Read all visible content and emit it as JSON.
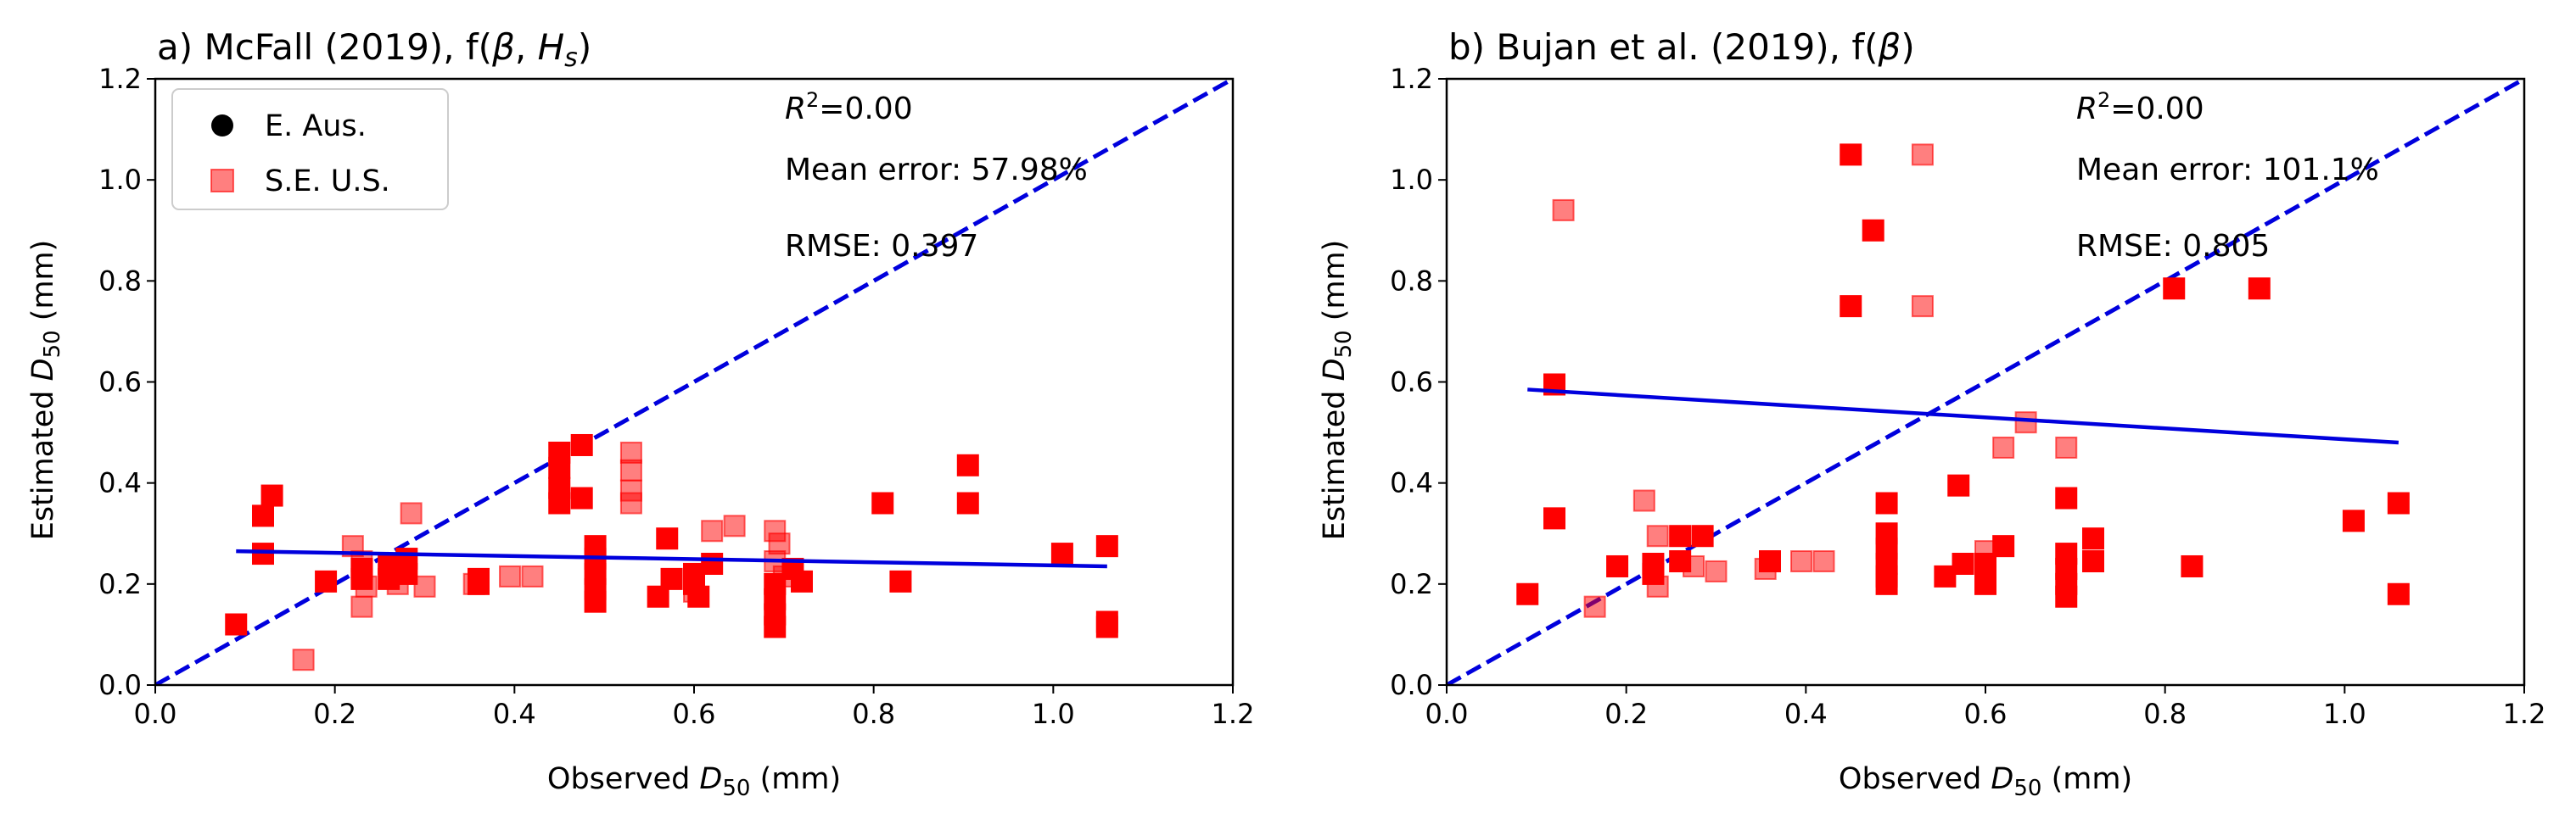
{
  "chart_data": [
    {
      "type": "scatter",
      "title": "a) McFall (2019), f(β, H_s)",
      "xlabel": "Observed D_50 (mm)",
      "ylabel": "Estimated D_50 (mm)",
      "xlim": [
        0,
        1.2
      ],
      "ylim": [
        0,
        1.2
      ],
      "xticks": [
        "0.0",
        "0.2",
        "0.4",
        "0.6",
        "0.8",
        "1.0",
        "1.2"
      ],
      "yticks": [
        "0.0",
        "0.2",
        "0.4",
        "0.6",
        "0.8",
        "1.0",
        "1.2"
      ],
      "grid": false,
      "legend": {
        "placement": "top-left",
        "entries": [
          {
            "label": "E. Aus.",
            "marker": "circle",
            "color": "#000000"
          },
          {
            "label": "S.E. U.S.",
            "marker": "square",
            "color": "#ff6b6b"
          }
        ]
      },
      "stats": {
        "r2": "R²=0.00",
        "mean_error": "Mean error: 57.98%",
        "rmse": "RMSE: 0.397"
      },
      "one_to_one_line": {
        "x": [
          0,
          1.2
        ],
        "y": [
          0,
          1.2
        ],
        "style": "dashed",
        "color": "#0000dd"
      },
      "fit_line": {
        "x": [
          0.09,
          1.06
        ],
        "y": [
          0.265,
          0.235
        ],
        "color": "#0000dd"
      },
      "series": [
        {
          "name": "E. Aus.",
          "marker": "square",
          "color": "#ff0000",
          "opacity": 1.0,
          "points": [
            [
              0.09,
              0.12
            ],
            [
              0.12,
              0.335
            ],
            [
              0.12,
              0.26
            ],
            [
              0.13,
              0.375
            ],
            [
              0.19,
              0.205
            ],
            [
              0.23,
              0.23
            ],
            [
              0.23,
              0.21
            ],
            [
              0.26,
              0.24
            ],
            [
              0.26,
              0.21
            ],
            [
              0.28,
              0.25
            ],
            [
              0.28,
              0.22
            ],
            [
              0.36,
              0.21
            ],
            [
              0.36,
              0.2
            ],
            [
              0.45,
              0.46
            ],
            [
              0.45,
              0.43
            ],
            [
              0.45,
              0.39
            ],
            [
              0.45,
              0.36
            ],
            [
              0.475,
              0.475
            ],
            [
              0.475,
              0.37
            ],
            [
              0.49,
              0.275
            ],
            [
              0.49,
              0.25
            ],
            [
              0.49,
              0.22
            ],
            [
              0.49,
              0.19
            ],
            [
              0.49,
              0.165
            ],
            [
              0.56,
              0.175
            ],
            [
              0.57,
              0.29
            ],
            [
              0.575,
              0.21
            ],
            [
              0.6,
              0.22
            ],
            [
              0.6,
              0.2
            ],
            [
              0.605,
              0.175
            ],
            [
              0.62,
              0.24
            ],
            [
              0.69,
              0.2
            ],
            [
              0.69,
              0.17
            ],
            [
              0.69,
              0.14
            ],
            [
              0.69,
              0.115
            ],
            [
              0.71,
              0.23
            ],
            [
              0.72,
              0.205
            ],
            [
              0.81,
              0.36
            ],
            [
              0.83,
              0.205
            ],
            [
              0.905,
              0.435
            ],
            [
              0.905,
              0.36
            ],
            [
              1.01,
              0.26
            ],
            [
              1.06,
              0.275
            ],
            [
              1.06,
              0.125
            ],
            [
              1.06,
              0.115
            ]
          ]
        },
        {
          "name": "S.E. U.S.",
          "marker": "square",
          "color": "#ff0000",
          "opacity": 0.5,
          "points": [
            [
              0.165,
              0.05
            ],
            [
              0.22,
              0.275
            ],
            [
              0.23,
              0.155
            ],
            [
              0.23,
              0.245
            ],
            [
              0.235,
              0.195
            ],
            [
              0.27,
              0.2
            ],
            [
              0.285,
              0.34
            ],
            [
              0.3,
              0.195
            ],
            [
              0.355,
              0.2
            ],
            [
              0.395,
              0.215
            ],
            [
              0.42,
              0.215
            ],
            [
              0.53,
              0.46
            ],
            [
              0.53,
              0.425
            ],
            [
              0.53,
              0.385
            ],
            [
              0.53,
              0.36
            ],
            [
              0.6,
              0.185
            ],
            [
              0.62,
              0.305
            ],
            [
              0.645,
              0.315
            ],
            [
              0.69,
              0.305
            ],
            [
              0.695,
              0.28
            ],
            [
              0.69,
              0.245
            ],
            [
              0.7,
              0.215
            ]
          ]
        }
      ]
    },
    {
      "type": "scatter",
      "title": "b) Bujan et al. (2019), f(β)",
      "xlabel": "Observed D_50 (mm)",
      "ylabel": "Estimated D_50 (mm)",
      "xlim": [
        0,
        1.2
      ],
      "ylim": [
        0,
        1.2
      ],
      "xticks": [
        "0.0",
        "0.2",
        "0.4",
        "0.6",
        "0.8",
        "1.0",
        "1.2"
      ],
      "yticks": [
        "0.0",
        "0.2",
        "0.4",
        "0.6",
        "0.8",
        "1.0",
        "1.2"
      ],
      "grid": false,
      "stats": {
        "r2": "R²=0.00",
        "mean_error": "Mean error: 101.1%",
        "rmse": "RMSE: 0.805"
      },
      "one_to_one_line": {
        "x": [
          0,
          1.2
        ],
        "y": [
          0,
          1.2
        ],
        "style": "dashed",
        "color": "#0000dd"
      },
      "fit_line": {
        "x": [
          0.09,
          1.06
        ],
        "y": [
          0.585,
          0.48
        ],
        "color": "#0000dd"
      },
      "series": [
        {
          "name": "E. Aus.",
          "marker": "square",
          "color": "#ff0000",
          "opacity": 1.0,
          "points": [
            [
              0.09,
              0.18
            ],
            [
              0.12,
              0.595
            ],
            [
              0.12,
              0.33
            ],
            [
              0.19,
              0.235
            ],
            [
              0.23,
              0.24
            ],
            [
              0.23,
              0.22
            ],
            [
              0.26,
              0.295
            ],
            [
              0.26,
              0.245
            ],
            [
              0.285,
              0.295
            ],
            [
              0.36,
              0.245
            ],
            [
              0.45,
              1.05
            ],
            [
              0.45,
              0.75
            ],
            [
              0.475,
              0.9
            ],
            [
              0.49,
              0.36
            ],
            [
              0.49,
              0.3
            ],
            [
              0.49,
              0.27
            ],
            [
              0.49,
              0.24
            ],
            [
              0.49,
              0.215
            ],
            [
              0.49,
              0.2
            ],
            [
              0.555,
              0.215
            ],
            [
              0.57,
              0.395
            ],
            [
              0.575,
              0.24
            ],
            [
              0.6,
              0.24
            ],
            [
              0.6,
              0.2
            ],
            [
              0.62,
              0.275
            ],
            [
              0.69,
              0.37
            ],
            [
              0.69,
              0.26
            ],
            [
              0.69,
              0.23
            ],
            [
              0.69,
              0.2
            ],
            [
              0.69,
              0.175
            ],
            [
              0.72,
              0.29
            ],
            [
              0.72,
              0.245
            ],
            [
              0.81,
              0.785
            ],
            [
              0.83,
              0.235
            ],
            [
              0.905,
              0.785
            ],
            [
              1.01,
              0.325
            ],
            [
              1.06,
              0.36
            ],
            [
              1.06,
              0.18
            ]
          ]
        },
        {
          "name": "S.E. U.S.",
          "marker": "square",
          "color": "#ff0000",
          "opacity": 0.5,
          "points": [
            [
              0.13,
              0.94
            ],
            [
              0.165,
              0.155
            ],
            [
              0.22,
              0.365
            ],
            [
              0.235,
              0.295
            ],
            [
              0.235,
              0.195
            ],
            [
              0.275,
              0.235
            ],
            [
              0.3,
              0.225
            ],
            [
              0.355,
              0.23
            ],
            [
              0.395,
              0.245
            ],
            [
              0.42,
              0.245
            ],
            [
              0.53,
              1.05
            ],
            [
              0.53,
              0.75
            ],
            [
              0.6,
              0.265
            ],
            [
              0.62,
              0.47
            ],
            [
              0.645,
              0.52
            ],
            [
              0.69,
              0.47
            ]
          ]
        }
      ]
    }
  ]
}
